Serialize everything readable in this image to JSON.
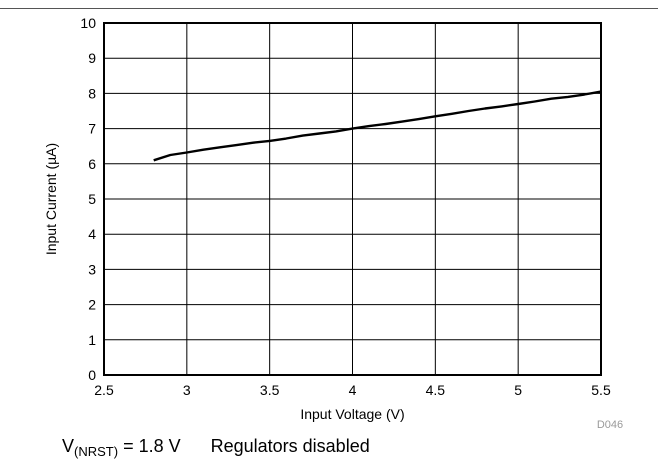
{
  "chart_data": {
    "type": "line",
    "xlabel": "Input Voltage (V)",
    "ylabel": "Input Current (µA)",
    "xlim": [
      2.5,
      5.5
    ],
    "ylim": [
      0,
      10
    ],
    "x_ticks": [
      2.5,
      3,
      3.5,
      4,
      4.5,
      5,
      5.5
    ],
    "y_ticks": [
      0,
      1,
      2,
      3,
      4,
      5,
      6,
      7,
      8,
      9,
      10
    ],
    "grid": true,
    "series": [
      {
        "color": "#000000",
        "x": [
          2.8,
          2.9,
          3.0,
          3.1,
          3.2,
          3.3,
          3.4,
          3.5,
          3.6,
          3.7,
          3.8,
          3.9,
          4.0,
          4.1,
          4.2,
          4.3,
          4.4,
          4.5,
          4.6,
          4.7,
          4.8,
          4.9,
          5.0,
          5.1,
          5.2,
          5.3,
          5.4,
          5.5
        ],
        "y": [
          6.1,
          6.25,
          6.32,
          6.4,
          6.47,
          6.53,
          6.6,
          6.65,
          6.72,
          6.8,
          6.86,
          6.92,
          7.0,
          7.07,
          7.13,
          7.2,
          7.27,
          7.35,
          7.42,
          7.5,
          7.57,
          7.63,
          7.7,
          7.77,
          7.85,
          7.9,
          7.97,
          8.05
        ]
      }
    ],
    "figure_id": "D046"
  },
  "caption": {
    "v_symbol": "V",
    "v_subscript": "(NRST)",
    "v_value": " = 1.8 V",
    "note": "Regulators disabled"
  }
}
